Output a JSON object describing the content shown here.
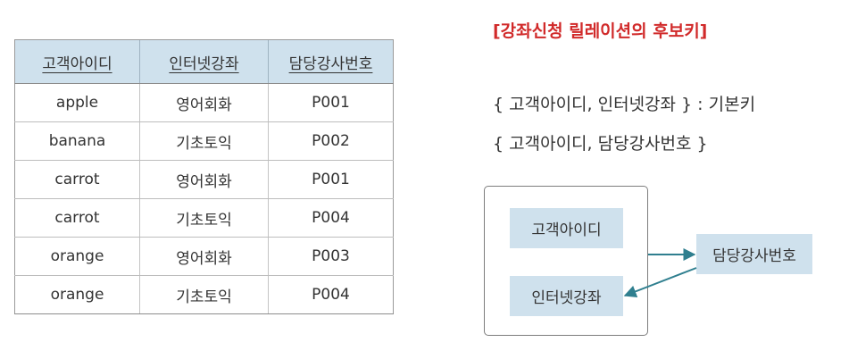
{
  "table": {
    "headers": [
      "고객아이디",
      "인터넷강좌",
      "담당강사번호"
    ],
    "rows": [
      [
        "apple",
        "영어회화",
        "P001"
      ],
      [
        "banana",
        "기초토익",
        "P002"
      ],
      [
        "carrot",
        "영어회화",
        "P001"
      ],
      [
        "carrot",
        "기초토익",
        "P004"
      ],
      [
        "orange",
        "영어회화",
        "P003"
      ],
      [
        "orange",
        "기초토익",
        "P004"
      ]
    ]
  },
  "heading": "[강좌신청 릴레이션의 후보키]",
  "candidate_keys": [
    "{ 고객아이디, 인터넷강좌 } : 기본키",
    "{ 고객아이디, 담당강사번호 }"
  ],
  "diagram": {
    "nodes": [
      "고객아이디",
      "인터넷강좌",
      "담당강사번호"
    ],
    "colors": {
      "node_fill": "#cfe1ed",
      "arrow": "#2f7f8f",
      "heading": "#d12a2a"
    }
  }
}
